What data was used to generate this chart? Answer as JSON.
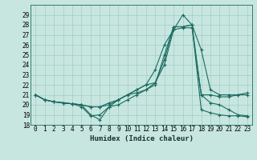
{
  "xlabel": "Humidex (Indice chaleur)",
  "bg_color": "#c8e6e0",
  "grid_color": "#a0ccc6",
  "line_color": "#1a6b60",
  "xlim_min": -0.5,
  "xlim_max": 23.5,
  "ylim_min": 18,
  "ylim_max": 30,
  "yticks": [
    18,
    19,
    20,
    21,
    22,
    23,
    24,
    25,
    26,
    27,
    28,
    29
  ],
  "xtick_labels": [
    "0",
    "1",
    "2",
    "3",
    "4",
    "5",
    "6",
    "7",
    "8",
    "9",
    "10",
    "11",
    "12",
    "13",
    "14",
    "15",
    "16",
    "17",
    "18",
    "19",
    "20",
    "21",
    "22",
    "23"
  ],
  "lines": [
    [
      21.0,
      20.5,
      20.3,
      20.2,
      20.1,
      20.0,
      19.0,
      18.5,
      19.8,
      20.5,
      21.0,
      21.5,
      22.0,
      23.5,
      26.0,
      27.5,
      29.0,
      28.0,
      25.5,
      21.5,
      21.0,
      21.0,
      21.0,
      21.2
    ],
    [
      21.0,
      20.5,
      20.3,
      20.2,
      20.1,
      20.0,
      19.8,
      19.8,
      20.0,
      20.5,
      21.0,
      21.2,
      21.5,
      22.2,
      24.5,
      27.8,
      27.8,
      28.0,
      21.0,
      20.2,
      20.0,
      19.5,
      19.0,
      18.9
    ],
    [
      21.0,
      20.5,
      20.3,
      20.2,
      20.1,
      20.0,
      19.8,
      19.8,
      20.2,
      20.5,
      21.0,
      21.5,
      22.0,
      22.2,
      24.0,
      27.5,
      27.7,
      27.7,
      21.0,
      21.0,
      20.8,
      20.8,
      21.0,
      21.0
    ],
    [
      21.0,
      20.5,
      20.3,
      20.2,
      20.1,
      19.8,
      18.9,
      19.0,
      19.8,
      20.0,
      20.5,
      21.0,
      21.5,
      22.0,
      25.0,
      27.8,
      27.8,
      28.0,
      19.5,
      19.2,
      19.0,
      18.9,
      18.9,
      18.8
    ]
  ],
  "tick_fontsize": 5.5,
  "xlabel_fontsize": 6.5
}
